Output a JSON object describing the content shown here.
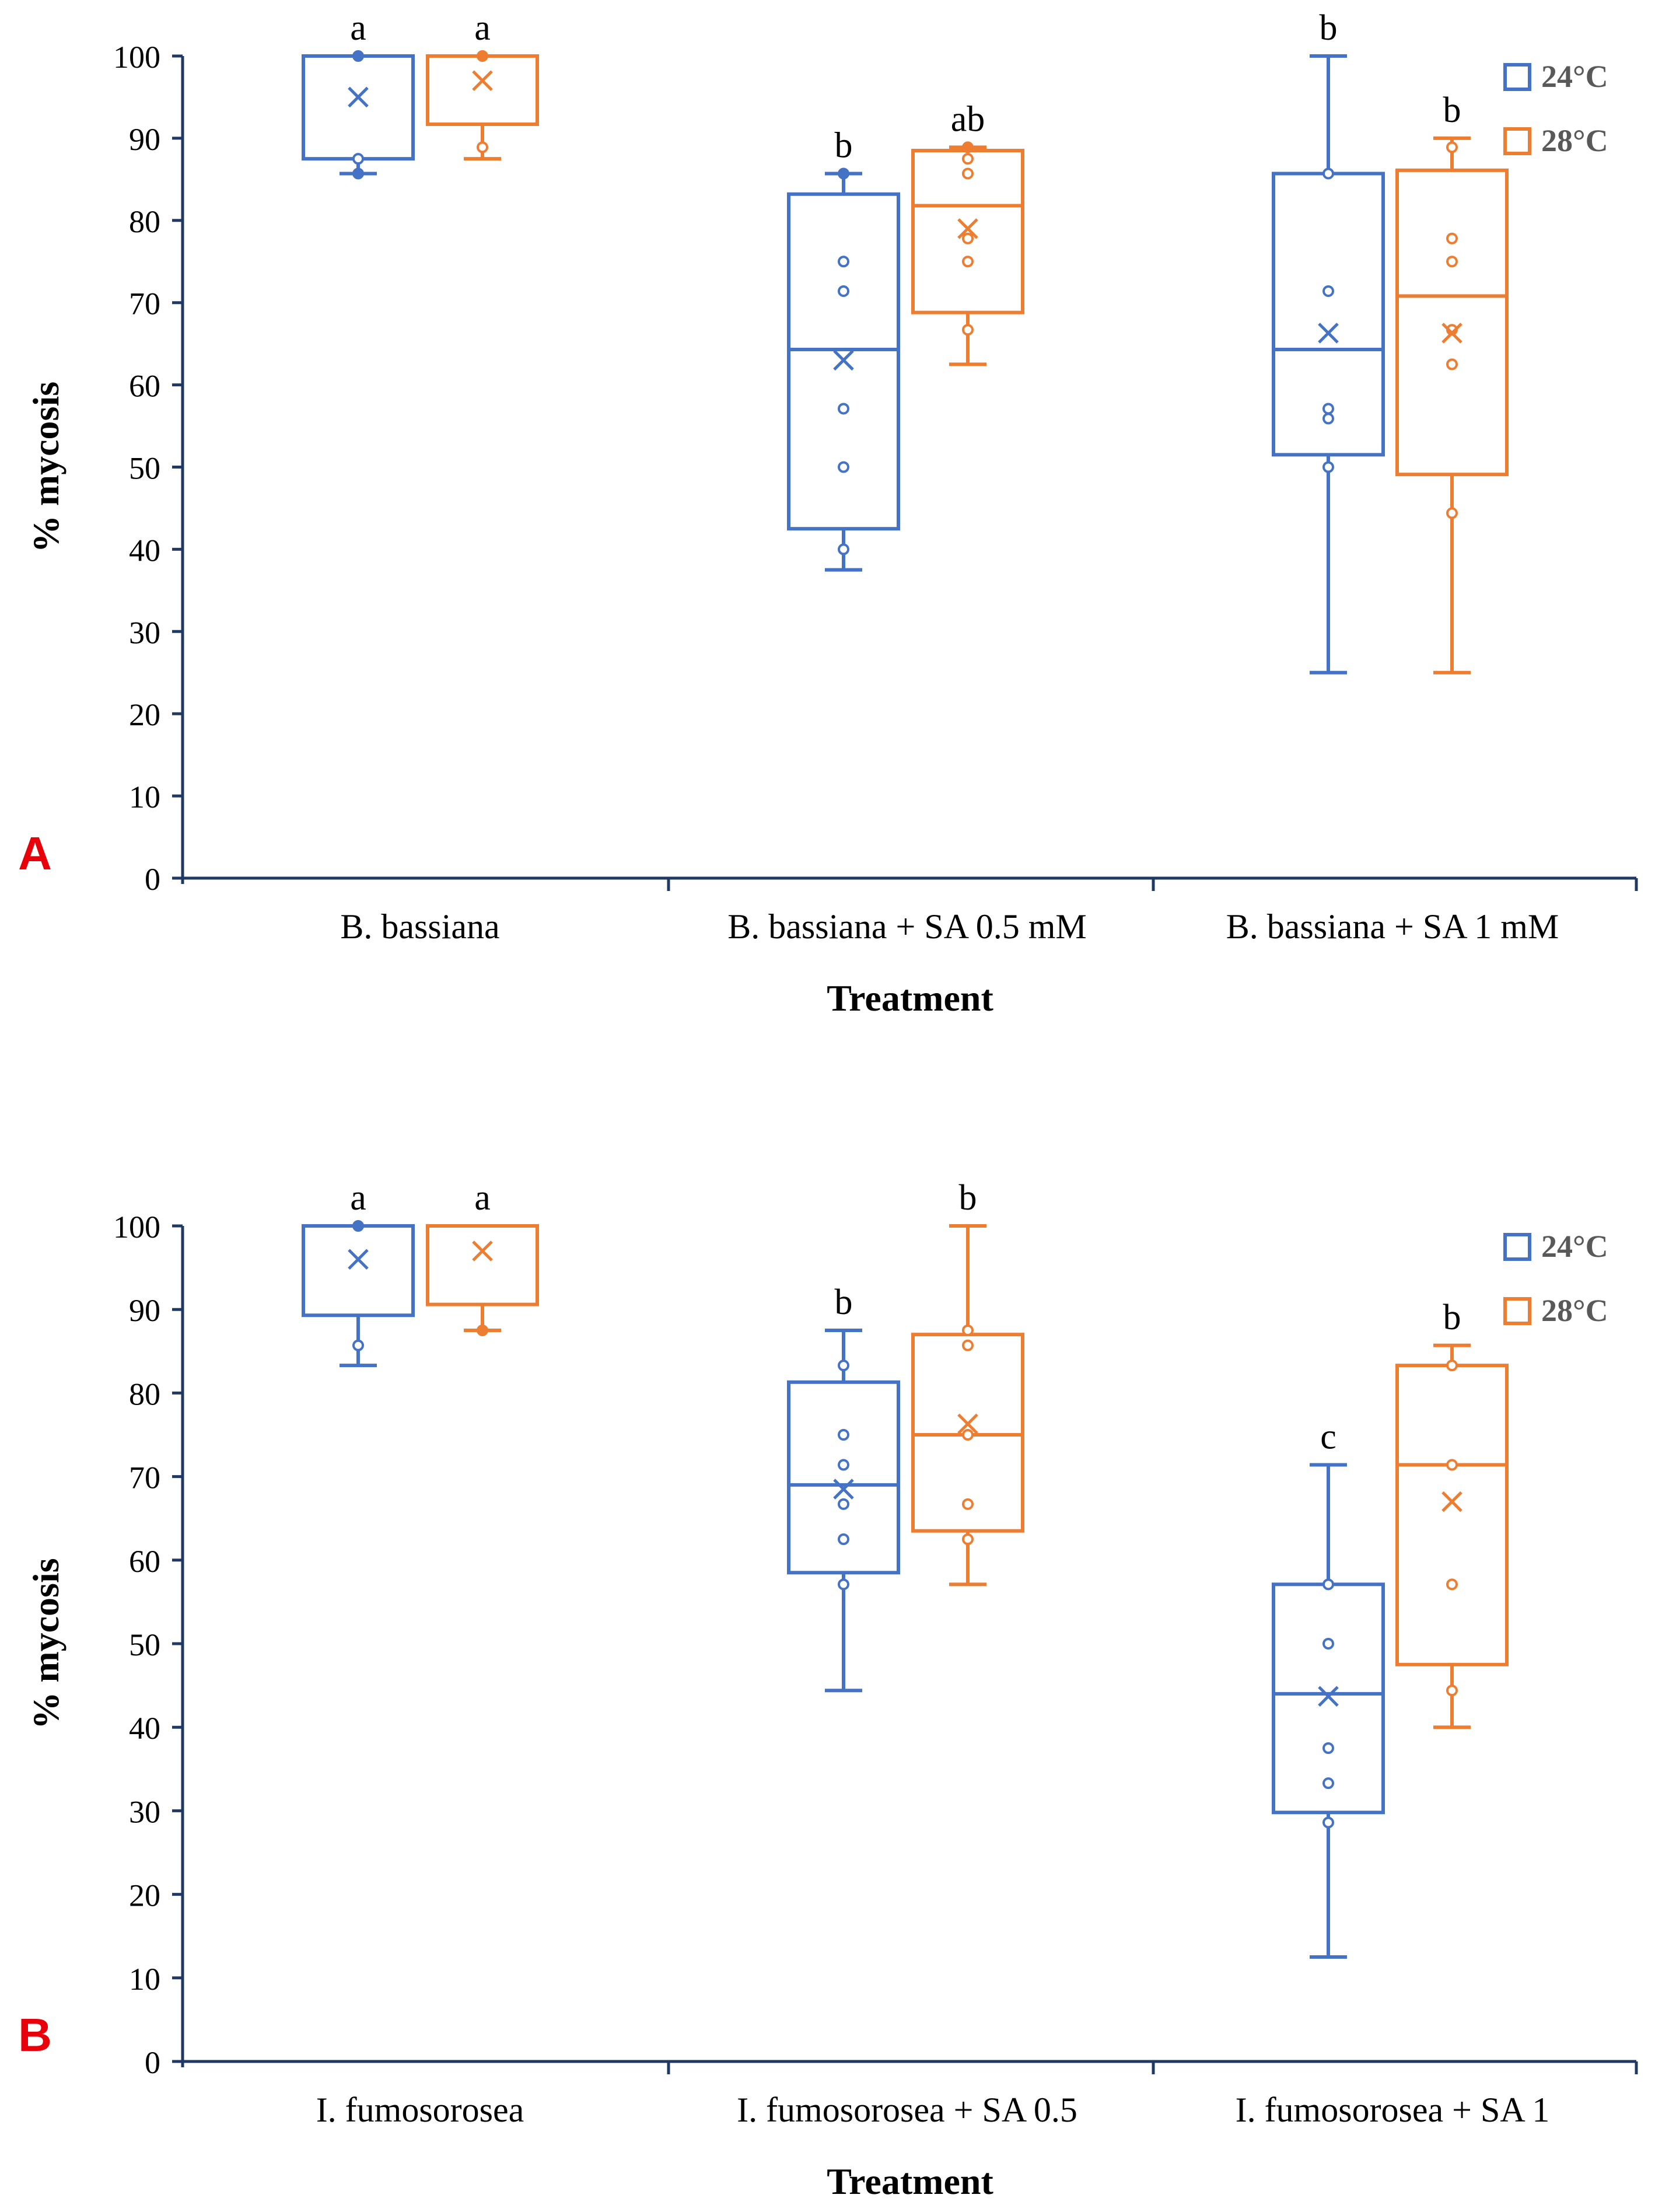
{
  "colors": {
    "series_24": "#4472C4",
    "series_28": "#ED7D31",
    "panel_label": "#E8000B",
    "axis": "#1F3864",
    "text": "#000000",
    "legend_text": "#595959"
  },
  "chart_data": [
    {
      "type": "box",
      "panel_label": "A",
      "xlabel": "Treatment",
      "ylabel": "% mycosis",
      "ylim": [
        0,
        100
      ],
      "yticks": [
        0,
        10,
        20,
        30,
        40,
        50,
        60,
        70,
        80,
        90,
        100
      ],
      "categories": [
        "B. bassiana",
        "B. bassiana + SA 0.5 mM",
        "B. bassiana + SA 1 mM"
      ],
      "series": [
        {
          "name": "24°C",
          "boxes": [
            {
              "min": 85.7,
              "q1": 87.5,
              "median": 100,
              "q3": 100,
              "max": 100,
              "mean": 95,
              "points": [
                100,
                87.5,
                85.7
              ],
              "letter": "a"
            },
            {
              "min": 37.5,
              "q1": 42.5,
              "median": 64.3,
              "q3": 83.2,
              "max": 85.7,
              "mean": 63,
              "points": [
                85.7,
                75,
                71.4,
                57.1,
                50,
                40
              ],
              "letter": "b"
            },
            {
              "min": 25,
              "q1": 51.5,
              "median": 64.3,
              "q3": 85.7,
              "max": 100,
              "mean": 66.3,
              "points": [
                85.7,
                71.4,
                57.1,
                55.9,
                50
              ],
              "letter": "b"
            }
          ]
        },
        {
          "name": "28°C",
          "boxes": [
            {
              "min": 87.5,
              "q1": 91.7,
              "median": 100,
              "q3": 100,
              "max": 100,
              "mean": 97,
              "points": [
                100,
                88.9
              ],
              "letter": "a"
            },
            {
              "min": 62.5,
              "q1": 68.8,
              "median": 81.8,
              "q3": 88.5,
              "max": 88.9,
              "mean": 79,
              "points": [
                88.9,
                87.5,
                85.7,
                77.8,
                75,
                66.7
              ],
              "letter": "ab"
            },
            {
              "min": 25,
              "q1": 49.1,
              "median": 70.8,
              "q3": 86.1,
              "max": 90,
              "mean": 66.3,
              "points": [
                88.9,
                77.8,
                75,
                66.7,
                62.5,
                44.4
              ],
              "letter": "b"
            }
          ]
        }
      ]
    },
    {
      "type": "box",
      "panel_label": "B",
      "xlabel": "Treatment",
      "ylabel": "% mycosis",
      "ylim": [
        0,
        100
      ],
      "yticks": [
        0,
        10,
        20,
        30,
        40,
        50,
        60,
        70,
        80,
        90,
        100
      ],
      "categories": [
        "I. fumosorosea",
        "I. fumosorosea + SA 0.5",
        "I. fumosorosea + SA 1"
      ],
      "series": [
        {
          "name": "24°C",
          "boxes": [
            {
              "min": 83.3,
              "q1": 89.3,
              "median": 100,
              "q3": 100,
              "max": 100,
              "mean": 96,
              "points": [
                100,
                85.7
              ],
              "letter": "a"
            },
            {
              "min": 44.4,
              "q1": 58.5,
              "median": 69,
              "q3": 81.3,
              "max": 87.5,
              "mean": 68.5,
              "points": [
                83.3,
                75,
                71.4,
                66.7,
                62.5,
                57.1
              ],
              "letter": "b"
            },
            {
              "min": 12.5,
              "q1": 29.8,
              "median": 44,
              "q3": 57.1,
              "max": 71.4,
              "mean": 43.7,
              "points": [
                57.1,
                50,
                37.5,
                33.3,
                28.6
              ],
              "letter": "c"
            }
          ]
        },
        {
          "name": "28°C",
          "boxes": [
            {
              "min": 87.5,
              "q1": 90.6,
              "median": 100,
              "q3": 100,
              "max": 100,
              "mean": 97,
              "points": [
                87.5
              ],
              "letter": "a"
            },
            {
              "min": 57.1,
              "q1": 63.5,
              "median": 75,
              "q3": 87,
              "max": 100,
              "mean": 76.3,
              "points": [
                87.5,
                85.7,
                75,
                66.7,
                62.5
              ],
              "letter": "b"
            },
            {
              "min": 40,
              "q1": 47.5,
              "median": 71.4,
              "q3": 83.3,
              "max": 85.7,
              "mean": 67,
              "points": [
                83.3,
                71.4,
                57.1,
                44.4
              ],
              "letter": "b"
            }
          ]
        }
      ]
    }
  ]
}
